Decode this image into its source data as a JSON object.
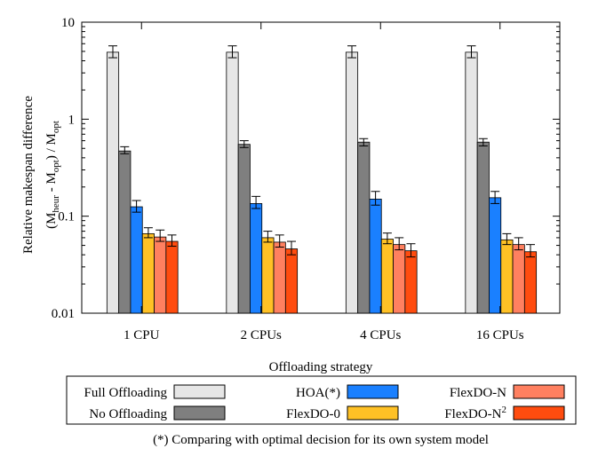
{
  "chart_data": {
    "type": "bar",
    "title": "",
    "ylabel_line1": "Relative makespan difference",
    "ylabel_line2": {
      "open": "(M",
      "heur": "heur",
      "minus": " - M",
      "opt1": "opt",
      "close": ")  /  M",
      "opt2": "opt"
    },
    "xlabel": "Offloading strategy",
    "yscale": "log",
    "ylim": [
      0.01,
      10
    ],
    "ytick_values": [
      0.01,
      0.1,
      1,
      10
    ],
    "ytick_labels": [
      "0.01",
      "0.1",
      "1",
      "10"
    ],
    "categories": [
      "1 CPU",
      "2 CPUs",
      "4 CPUs",
      "16 CPUs"
    ],
    "series": [
      {
        "name": "Full Offloading",
        "color": "#e6e6e6",
        "values": [
          4.9,
          4.9,
          4.9,
          4.9
        ],
        "err_low": [
          4.3,
          4.3,
          4.3,
          4.3
        ],
        "err_high": [
          5.7,
          5.7,
          5.7,
          5.7
        ]
      },
      {
        "name": "No Offloading",
        "color": "#7f7f7f",
        "values": [
          0.47,
          0.55,
          0.58,
          0.58
        ],
        "err_low": [
          0.44,
          0.51,
          0.53,
          0.53
        ],
        "err_high": [
          0.52,
          0.6,
          0.63,
          0.63
        ]
      },
      {
        "name": "HOA(*)",
        "color": "#1a80ff",
        "values": [
          0.125,
          0.135,
          0.15,
          0.155
        ],
        "err_low": [
          0.11,
          0.12,
          0.13,
          0.135
        ],
        "err_high": [
          0.145,
          0.16,
          0.18,
          0.18
        ]
      },
      {
        "name": "FlexDO-0",
        "color": "#ffc125",
        "values": [
          0.066,
          0.06,
          0.058,
          0.057
        ],
        "err_low": [
          0.06,
          0.054,
          0.052,
          0.051
        ],
        "err_high": [
          0.076,
          0.07,
          0.067,
          0.066
        ]
      },
      {
        "name": "FlexDO-N",
        "color": "#ff8060",
        "values": [
          0.061,
          0.054,
          0.051,
          0.051
        ],
        "err_low": [
          0.055,
          0.048,
          0.045,
          0.045
        ],
        "err_high": [
          0.072,
          0.064,
          0.06,
          0.06
        ]
      },
      {
        "name": "FlexDO-N",
        "name_sup": "2",
        "color": "#ff4c0f",
        "values": [
          0.055,
          0.046,
          0.044,
          0.043
        ],
        "err_low": [
          0.049,
          0.04,
          0.038,
          0.038
        ],
        "err_high": [
          0.064,
          0.055,
          0.052,
          0.051
        ]
      }
    ],
    "legend_position": "below",
    "grid": false,
    "footnote": "(*) Comparing with optimal decision for its own system model"
  }
}
